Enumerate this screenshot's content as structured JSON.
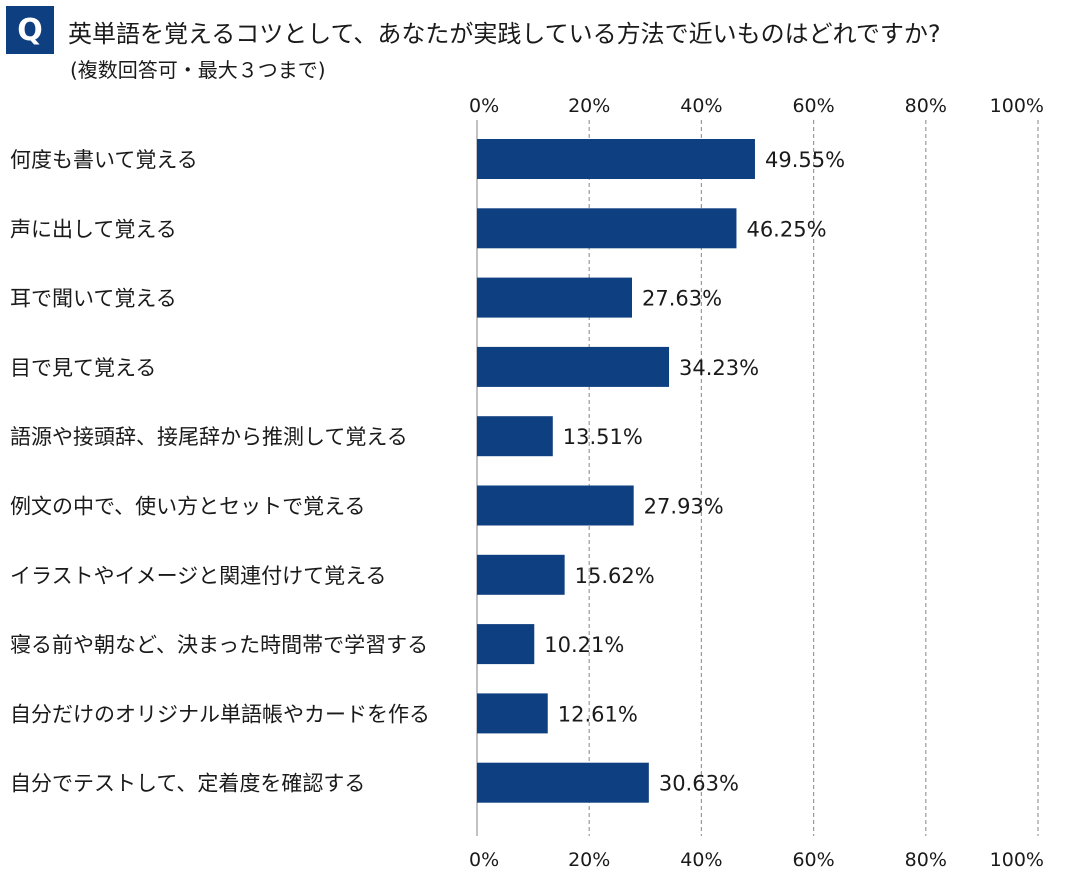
{
  "header": {
    "badge": "Q",
    "title": "英単語を覚えるコツとして、あなたが実践している方法で近いものはどれですか?",
    "subtitle": "(複数回答可・最大３つまで)"
  },
  "colors": {
    "bar": "#0e3f80",
    "badge": "#0e3f80",
    "grid": "#9a9a9a"
  },
  "chart_data": {
    "type": "bar",
    "orientation": "horizontal",
    "title": "英単語を覚えるコツとして、あなたが実践している方法で近いものはどれですか?",
    "subtitle": "(複数回答可・最大３つまで)",
    "xlabel": "",
    "ylabel": "",
    "xlim": [
      0,
      100
    ],
    "xticks": [
      "0%",
      "20%",
      "40%",
      "60%",
      "80%",
      "100%"
    ],
    "xtick_values": [
      0,
      20,
      40,
      60,
      80,
      100
    ],
    "grid": true,
    "grid_style": "dashed vertical",
    "axis_ticks_top_and_bottom": true,
    "categories": [
      "何度も書いて覚える",
      "声に出して覚える",
      "耳で聞いて覚える",
      "目で見て覚える",
      "語源や接頭辞、接尾辞から推測して覚える",
      "例文の中で、使い方とセットで覚える",
      "イラストやイメージと関連付けて覚える",
      "寝る前や朝など、決まった時間帯で学習する",
      "自分だけのオリジナル単語帳やカードを作る",
      "自分でテストして、定着度を確認する"
    ],
    "values": [
      49.55,
      46.25,
      27.63,
      34.23,
      13.51,
      27.93,
      15.62,
      10.21,
      12.61,
      30.63
    ],
    "value_labels": [
      "49.55%",
      "46.25%",
      "27.63%",
      "34.23%",
      "13.51%",
      "27.93%",
      "15.62%",
      "10.21%",
      "12.61%",
      "30.63%"
    ]
  }
}
